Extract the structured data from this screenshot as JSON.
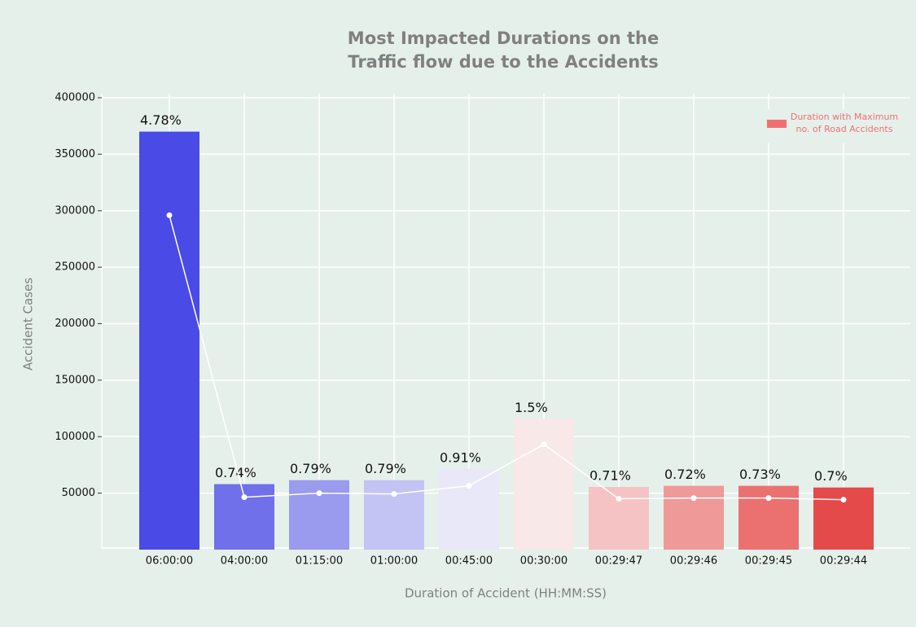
{
  "chart_data": {
    "type": "bar",
    "title": [
      "Most Impacted Durations on the",
      "Traffic flow due to the Accidents"
    ],
    "x_label": "Duration of Accident (HH:MM:SS)",
    "y_label": "Accident Cases",
    "categories": [
      "06:00:00",
      "04:00:00",
      "01:15:00",
      "01:00:00",
      "00:45:00",
      "00:30:00",
      "00:29:47",
      "00:29:46",
      "00:29:45",
      "00:29:44"
    ],
    "bars": {
      "name": [
        "Duration with Maximum",
        "no. of Road Accidents"
      ],
      "legend_color": "#f07070",
      "values": [
        370000,
        58000,
        61500,
        61500,
        71500,
        115500,
        55500,
        56500,
        56500,
        55000
      ],
      "colors": [
        "#4a4ae6",
        "#7070ea",
        "#9a9aef",
        "#c4c4f4",
        "#e9e8f8",
        "#f9e8e8",
        "#f5c3c3",
        "#f09999",
        "#eb7171",
        "#e44a4a"
      ],
      "annotations": [
        "4.78%",
        "0.74%",
        "0.79%",
        "0.79%",
        "0.91%",
        "1.5%",
        "0.71%",
        "0.72%",
        "0.73%",
        "0.7%"
      ]
    },
    "line": {
      "color": "#ffffff",
      "values": [
        296000,
        46400,
        50000,
        49300,
        56500,
        93200,
        45000,
        45700,
        45700,
        44200
      ]
    },
    "ylim": [
      0,
      400000
    ],
    "yticks": [
      50000,
      100000,
      150000,
      200000,
      250000,
      300000,
      350000,
      400000
    ],
    "grid": true
  }
}
